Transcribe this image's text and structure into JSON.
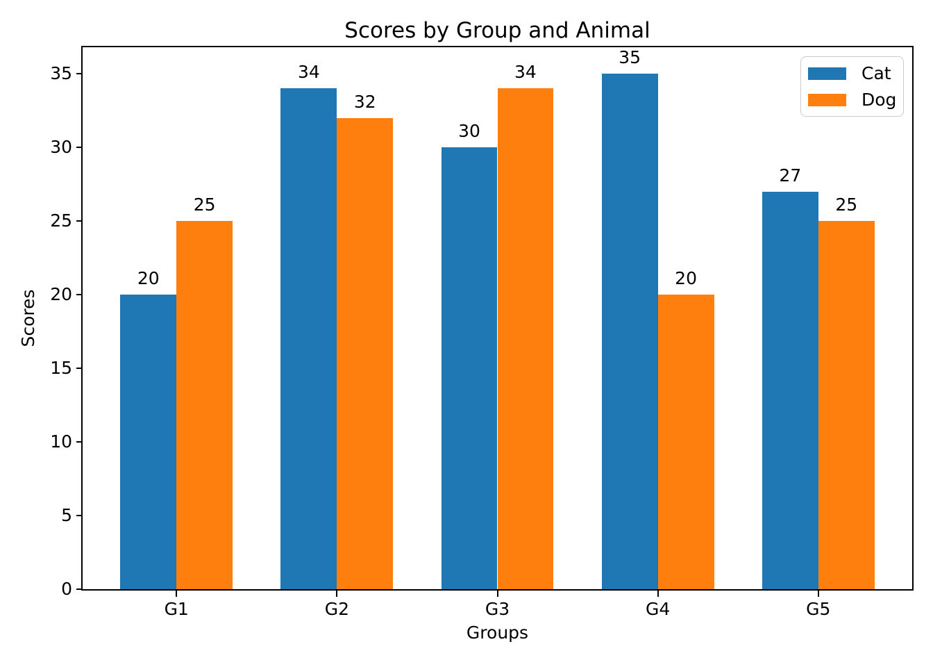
{
  "chart_data": {
    "type": "bar",
    "title": "Scores by Group and Animal",
    "xlabel": "Groups",
    "ylabel": "Scores",
    "categories": [
      "G1",
      "G2",
      "G3",
      "G4",
      "G5"
    ],
    "series": [
      {
        "name": "Cat",
        "color": "#1f77b4",
        "values": [
          20,
          34,
          30,
          35,
          27
        ]
      },
      {
        "name": "Dog",
        "color": "#ff7f0e",
        "values": [
          25,
          32,
          34,
          20,
          25
        ]
      }
    ],
    "yticks": [
      0,
      5,
      10,
      15,
      20,
      25,
      30,
      35
    ],
    "ylim": [
      0,
      36.8
    ],
    "xlim": [
      -0.585,
      4.585
    ],
    "bar_width": 0.35,
    "bar_value_labels": true,
    "grid": false,
    "legend_position": "upper right",
    "background_color": "#ffffff",
    "axis_color": "#000000"
  }
}
